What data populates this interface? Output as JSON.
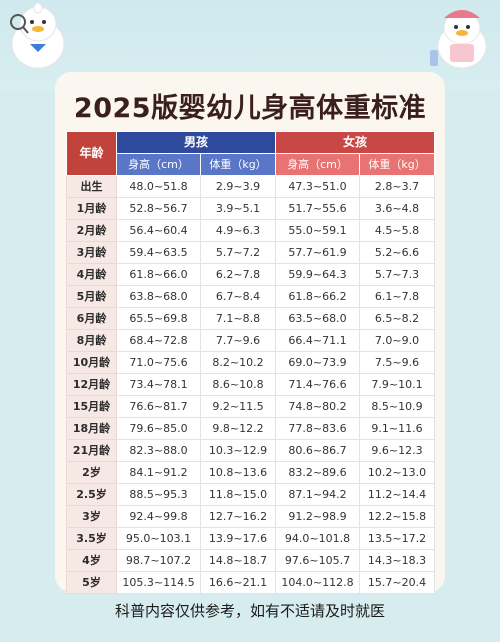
{
  "title": "2025版婴幼儿身高体重标准",
  "header": {
    "age": "年龄",
    "boy": "男孩",
    "girl": "女孩",
    "height": "身高（cm）",
    "weight": "体重（kg）"
  },
  "rows": [
    {
      "age": "出生",
      "boy_h": "48.0~51.8",
      "boy_w": "2.9~3.9",
      "girl_h": "47.3~51.0",
      "girl_w": "2.8~3.7"
    },
    {
      "age": "1月龄",
      "boy_h": "52.8~56.7",
      "boy_w": "3.9~5.1",
      "girl_h": "51.7~55.6",
      "girl_w": "3.6~4.8"
    },
    {
      "age": "2月龄",
      "boy_h": "56.4~60.4",
      "boy_w": "4.9~6.3",
      "girl_h": "55.0~59.1",
      "girl_w": "4.5~5.8"
    },
    {
      "age": "3月龄",
      "boy_h": "59.4~63.5",
      "boy_w": "5.7~7.2",
      "girl_h": "57.7~61.9",
      "girl_w": "5.2~6.6"
    },
    {
      "age": "4月龄",
      "boy_h": "61.8~66.0",
      "boy_w": "6.2~7.8",
      "girl_h": "59.9~64.3",
      "girl_w": "5.7~7.3"
    },
    {
      "age": "5月龄",
      "boy_h": "63.8~68.0",
      "boy_w": "6.7~8.4",
      "girl_h": "61.8~66.2",
      "girl_w": "6.1~7.8"
    },
    {
      "age": "6月龄",
      "boy_h": "65.5~69.8",
      "boy_w": "7.1~8.8",
      "girl_h": "63.5~68.0",
      "girl_w": "6.5~8.2"
    },
    {
      "age": "8月龄",
      "boy_h": "68.4~72.8",
      "boy_w": "7.7~9.6",
      "girl_h": "66.4~71.1",
      "girl_w": "7.0~9.0"
    },
    {
      "age": "10月龄",
      "boy_h": "71.0~75.6",
      "boy_w": "8.2~10.2",
      "girl_h": "69.0~73.9",
      "girl_w": "7.5~9.6"
    },
    {
      "age": "12月龄",
      "boy_h": "73.4~78.1",
      "boy_w": "8.6~10.8",
      "girl_h": "71.4~76.6",
      "girl_w": "7.9~10.1"
    },
    {
      "age": "15月龄",
      "boy_h": "76.6~81.7",
      "boy_w": "9.2~11.5",
      "girl_h": "74.8~80.2",
      "girl_w": "8.5~10.9"
    },
    {
      "age": "18月龄",
      "boy_h": "79.6~85.0",
      "boy_w": "9.8~12.2",
      "girl_h": "77.8~83.6",
      "girl_w": "9.1~11.6"
    },
    {
      "age": "21月龄",
      "boy_h": "82.3~88.0",
      "boy_w": "10.3~12.9",
      "girl_h": "80.6~86.7",
      "girl_w": "9.6~12.3"
    },
    {
      "age": "2岁",
      "boy_h": "84.1~91.2",
      "boy_w": "10.8~13.6",
      "girl_h": "83.2~89.6",
      "girl_w": "10.2~13.0"
    },
    {
      "age": "2.5岁",
      "boy_h": "88.5~95.3",
      "boy_w": "11.8~15.0",
      "girl_h": "87.1~94.2",
      "girl_w": "11.2~14.4"
    },
    {
      "age": "3岁",
      "boy_h": "92.4~99.8",
      "boy_w": "12.7~16.2",
      "girl_h": "91.2~98.9",
      "girl_w": "12.2~15.8"
    },
    {
      "age": "3.5岁",
      "boy_h": "95.0~103.1",
      "boy_w": "13.9~17.6",
      "girl_h": "94.0~101.8",
      "girl_w": "13.5~17.2"
    },
    {
      "age": "4岁",
      "boy_h": "98.7~107.2",
      "boy_w": "14.8~18.7",
      "girl_h": "97.6~105.7",
      "girl_w": "14.3~18.3"
    },
    {
      "age": "5岁",
      "boy_h": "105.3~114.5",
      "boy_w": "16.6~21.1",
      "girl_h": "104.0~112.8",
      "girl_w": "15.7~20.4"
    }
  ],
  "footer": "科普内容仅供参考，如有不适请及时就医",
  "colors": {
    "boy_header": "#2f4a9c",
    "girl_header": "#c94846",
    "age_header": "#c2433b"
  },
  "icons": {
    "left": "duck-mascot-with-magnifier-icon",
    "right": "duck-mascot-with-cap-icon"
  }
}
